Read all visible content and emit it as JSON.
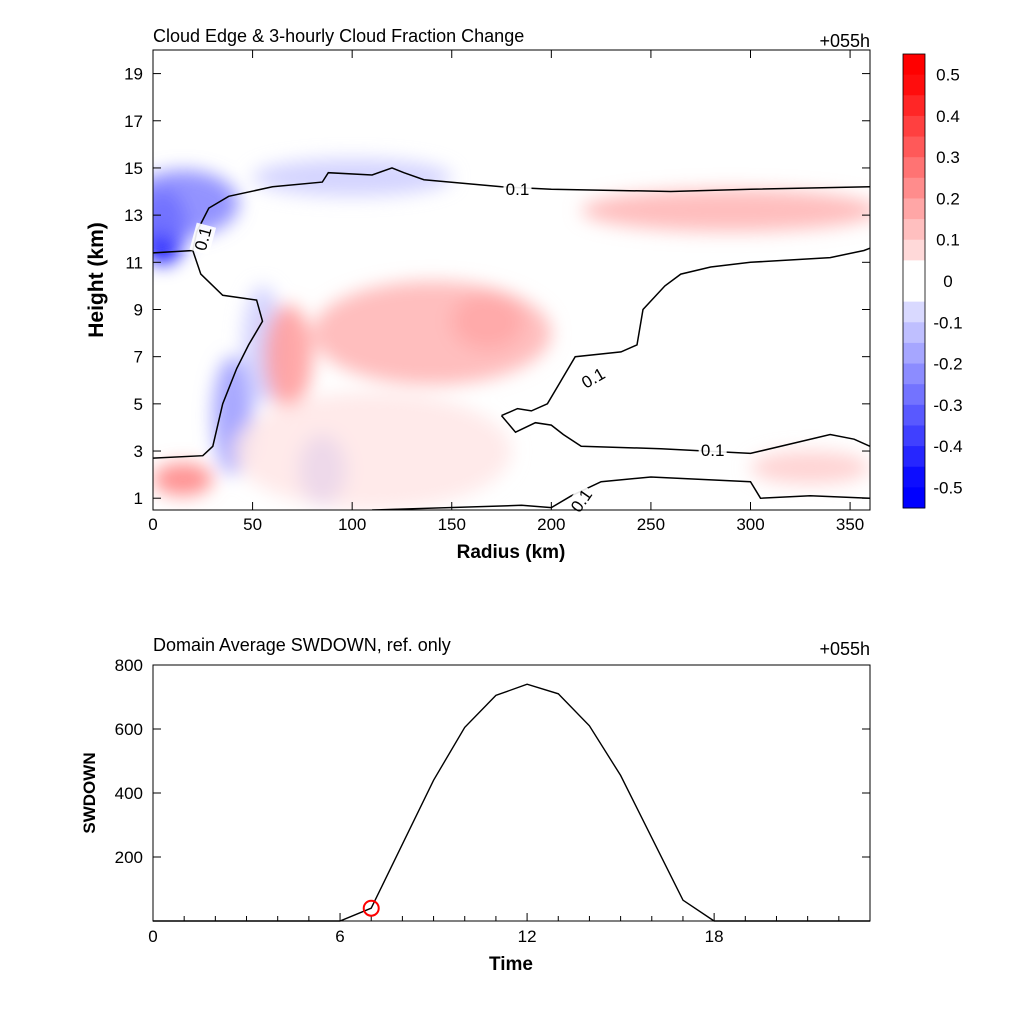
{
  "chart_data": [
    {
      "type": "heatmap",
      "title": "Cloud Edge & 3-hourly Cloud Fraction Change",
      "corner_label": "+055h",
      "xlabel": "Radius (km)",
      "ylabel": "Height (km)",
      "xlim": [
        0,
        360
      ],
      "ylim": [
        0.5,
        20
      ],
      "xticks": [
        0,
        50,
        100,
        150,
        200,
        250,
        300,
        350
      ],
      "yticks": [
        1,
        3,
        5,
        7,
        9,
        11,
        13,
        15,
        17,
        19
      ],
      "colorbar": {
        "levels": [
          0.5,
          0.4,
          0.3,
          0.2,
          0.1,
          0,
          -0.1,
          -0.2,
          -0.3,
          -0.4,
          -0.5
        ],
        "low_color": "#0000ff",
        "mid_color": "#ffffff",
        "high_color": "#ff0000"
      },
      "contour_label": "0.1",
      "features": [
        {
          "x": 5,
          "y": 12.5,
          "rx": 12,
          "ry": 1.6,
          "value": -0.5
        },
        {
          "x": 15,
          "y": 13.5,
          "rx": 28,
          "ry": 1.4,
          "value": -0.25
        },
        {
          "x": 100,
          "y": 14.6,
          "rx": 50,
          "ry": 0.8,
          "value": -0.1
        },
        {
          "x": 40,
          "y": 4.5,
          "rx": 10,
          "ry": 2.5,
          "value": -0.2
        },
        {
          "x": 85,
          "y": 2.2,
          "rx": 12,
          "ry": 1.5,
          "value": -0.25
        },
        {
          "x": 55,
          "y": 7.5,
          "rx": 10,
          "ry": 2.5,
          "value": -0.1
        },
        {
          "x": 168,
          "y": 8.5,
          "rx": 18,
          "ry": 1.2,
          "value": 0.3
        },
        {
          "x": 140,
          "y": 8,
          "rx": 60,
          "ry": 2.2,
          "value": 0.15
        },
        {
          "x": 68,
          "y": 7,
          "rx": 12,
          "ry": 2.2,
          "value": 0.2
        },
        {
          "x": 15,
          "y": 1.8,
          "rx": 15,
          "ry": 0.7,
          "value": 0.25
        },
        {
          "x": 290,
          "y": 13.2,
          "rx": 75,
          "ry": 0.9,
          "value": 0.15
        },
        {
          "x": 330,
          "y": 2.3,
          "rx": 30,
          "ry": 0.7,
          "value": 0.1
        },
        {
          "x": 110,
          "y": 3,
          "rx": 70,
          "ry": 2.5,
          "value": 0.05
        }
      ],
      "contour_paths": [
        [
          [
            0,
            11.4
          ],
          [
            20,
            11.5
          ],
          [
            22,
            12.3
          ],
          [
            28,
            13.3
          ],
          [
            38,
            13.8
          ],
          [
            60,
            14.2
          ],
          [
            85,
            14.4
          ],
          [
            88,
            14.8
          ],
          [
            110,
            14.7
          ],
          [
            120,
            15
          ],
          [
            126,
            14.8
          ],
          [
            136,
            14.5
          ],
          [
            175,
            14.2
          ],
          [
            200,
            14.1
          ],
          [
            260,
            14
          ],
          [
            300,
            14.1
          ],
          [
            360,
            14.2
          ]
        ],
        [
          [
            20,
            11.5
          ],
          [
            24,
            10.5
          ],
          [
            35,
            9.6
          ],
          [
            52,
            9.4
          ],
          [
            55,
            8.5
          ],
          [
            48,
            7.5
          ],
          [
            42,
            6.5
          ],
          [
            35,
            5
          ],
          [
            30,
            3.2
          ],
          [
            25,
            2.8
          ],
          [
            0,
            2.7
          ]
        ],
        [
          [
            175,
            4.5
          ],
          [
            183,
            4.8
          ],
          [
            190,
            4.7
          ],
          [
            198,
            5
          ],
          [
            205,
            6
          ],
          [
            212,
            7
          ],
          [
            235,
            7.2
          ],
          [
            243,
            7.5
          ],
          [
            246,
            9
          ],
          [
            257,
            10
          ],
          [
            265,
            10.5
          ],
          [
            280,
            10.8
          ],
          [
            300,
            11
          ],
          [
            340,
            11.2
          ],
          [
            357,
            11.5
          ],
          [
            360,
            11.6
          ]
        ],
        [
          [
            175,
            4.5
          ],
          [
            182,
            3.8
          ],
          [
            192,
            4.2
          ],
          [
            200,
            4.1
          ],
          [
            206,
            3.7
          ],
          [
            215,
            3.2
          ],
          [
            255,
            3.1
          ],
          [
            300,
            2.9
          ],
          [
            325,
            3.4
          ],
          [
            340,
            3.7
          ],
          [
            352,
            3.5
          ],
          [
            360,
            3.2
          ]
        ],
        [
          [
            110,
            0.5
          ],
          [
            185,
            0.7
          ],
          [
            200,
            0.6
          ],
          [
            210,
            1.1
          ],
          [
            225,
            1.7
          ],
          [
            250,
            1.9
          ],
          [
            300,
            1.7
          ],
          [
            305,
            1
          ],
          [
            330,
            1.1
          ],
          [
            360,
            1
          ]
        ]
      ],
      "contour_labels": [
        {
          "x": 183,
          "y": 14.1,
          "angle": 0
        },
        {
          "x": 25,
          "y": 12,
          "angle": -75
        },
        {
          "x": 221,
          "y": 6.1,
          "angle": -30
        },
        {
          "x": 281,
          "y": 3.05,
          "angle": 0
        },
        {
          "x": 215,
          "y": 0.9,
          "angle": -55
        }
      ]
    },
    {
      "type": "line",
      "title": "Domain Average SWDOWN, ref. only",
      "corner_label": "+055h",
      "xlabel": "Time",
      "ylabel": "SWDOWN",
      "xlim": [
        0,
        23
      ],
      "ylim": [
        0,
        800
      ],
      "xticks": [
        0,
        6,
        12,
        18
      ],
      "yticks": [
        200,
        400,
        600,
        800
      ],
      "series": [
        {
          "x": [
            0,
            1,
            2,
            3,
            4,
            5,
            6,
            7,
            8,
            9,
            10,
            11,
            12,
            13,
            14,
            15,
            16,
            17,
            18,
            19,
            20,
            21,
            22,
            23
          ],
          "values": [
            0,
            0,
            0,
            0,
            0,
            0,
            0,
            40,
            240,
            440,
            605,
            705,
            740,
            710,
            610,
            455,
            260,
            65,
            0,
            0,
            0,
            0,
            0,
            0
          ],
          "color": "#000000"
        }
      ],
      "marker": {
        "x": 7,
        "y": 40,
        "color": "#ff0000"
      }
    }
  ]
}
